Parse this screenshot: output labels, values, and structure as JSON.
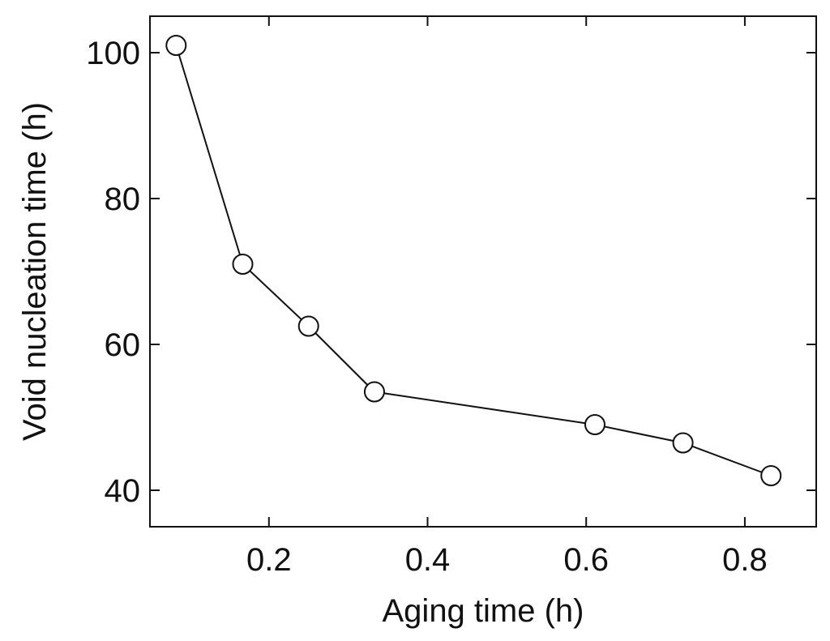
{
  "chart_data": {
    "type": "line",
    "title": "",
    "xlabel": "Aging time (h)",
    "ylabel": "Void nucleation time (h)",
    "xlim": [
      0.05,
      0.89
    ],
    "ylim": [
      35,
      105
    ],
    "xticks": [
      0.2,
      0.4,
      0.6,
      0.8
    ],
    "xtick_labels": [
      "0.2",
      "0.4",
      "0.6",
      "0.8"
    ],
    "yticks": [
      40,
      60,
      80,
      100
    ],
    "ytick_labels": [
      "40",
      "60",
      "80",
      "100"
    ],
    "grid": false,
    "legend": "none",
    "colors": {
      "line": "#111111",
      "marker": "#111111",
      "background": "#ffffff"
    },
    "series": [
      {
        "name": "Void nucleation time",
        "marker": "open-circle",
        "x": [
          0.083,
          0.167,
          0.25,
          0.333,
          0.611,
          0.722,
          0.833
        ],
        "y": [
          101,
          71,
          62.5,
          53.5,
          49,
          46.5,
          42
        ]
      }
    ]
  }
}
